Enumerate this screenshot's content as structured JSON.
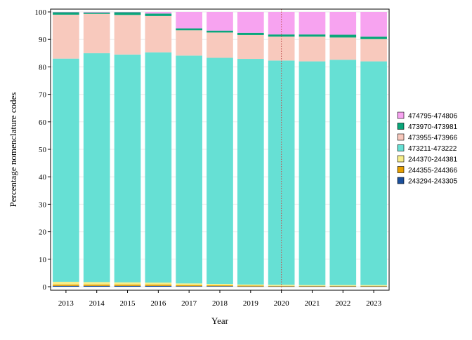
{
  "chart_data": {
    "type": "bar",
    "stacked": true,
    "xlabel": "Year",
    "ylabel": "Percentage nomenclature codes",
    "categories": [
      "2013",
      "2014",
      "2015",
      "2016",
      "2017",
      "2018",
      "2019",
      "2020",
      "2021",
      "2022",
      "2023"
    ],
    "ylim": [
      0,
      100
    ],
    "yticks": [
      0,
      10,
      20,
      30,
      40,
      50,
      60,
      70,
      80,
      90,
      100
    ],
    "grid": true,
    "legend_position": "right",
    "reference_line": {
      "x": "2020",
      "style": "dotted",
      "color": "#c05050"
    },
    "series": [
      {
        "name": "243294-243305",
        "color": "#1b4f9c",
        "values": [
          0.3,
          0.3,
          0.3,
          0.3,
          0.2,
          0.2,
          0.1,
          0.1,
          0.1,
          0.1,
          0.1
        ]
      },
      {
        "name": "244355-244366",
        "color": "#e69f00",
        "values": [
          0.5,
          0.5,
          0.5,
          0.5,
          0.4,
          0.3,
          0.3,
          0.2,
          0.2,
          0.2,
          0.2
        ]
      },
      {
        "name": "244370-244381",
        "color": "#f7ee8a",
        "values": [
          1.0,
          0.9,
          0.8,
          0.7,
          0.6,
          0.5,
          0.4,
          0.4,
          0.3,
          0.3,
          0.3
        ]
      },
      {
        "name": "473211-473222",
        "color": "#66e0d4",
        "values": [
          81.2,
          83.3,
          82.9,
          83.8,
          82.9,
          82.3,
          82.1,
          81.6,
          81.4,
          82.0,
          81.4
        ]
      },
      {
        "name": "473955-473966",
        "color": "#f8c9bd",
        "values": [
          16.0,
          14.3,
          14.4,
          13.2,
          9.2,
          9.2,
          8.7,
          8.7,
          9.0,
          8.1,
          8.1
        ]
      },
      {
        "name": "473970-473981",
        "color": "#0aa67a",
        "values": [
          0.9,
          0.5,
          1.0,
          0.9,
          0.7,
          0.7,
          0.8,
          0.8,
          0.8,
          1.0,
          0.9
        ]
      },
      {
        "name": "474795-474806",
        "color": "#f7a3f0",
        "values": [
          0.1,
          0.2,
          0.1,
          0.6,
          6.0,
          6.8,
          7.6,
          8.2,
          8.2,
          8.3,
          9.0
        ]
      }
    ]
  }
}
